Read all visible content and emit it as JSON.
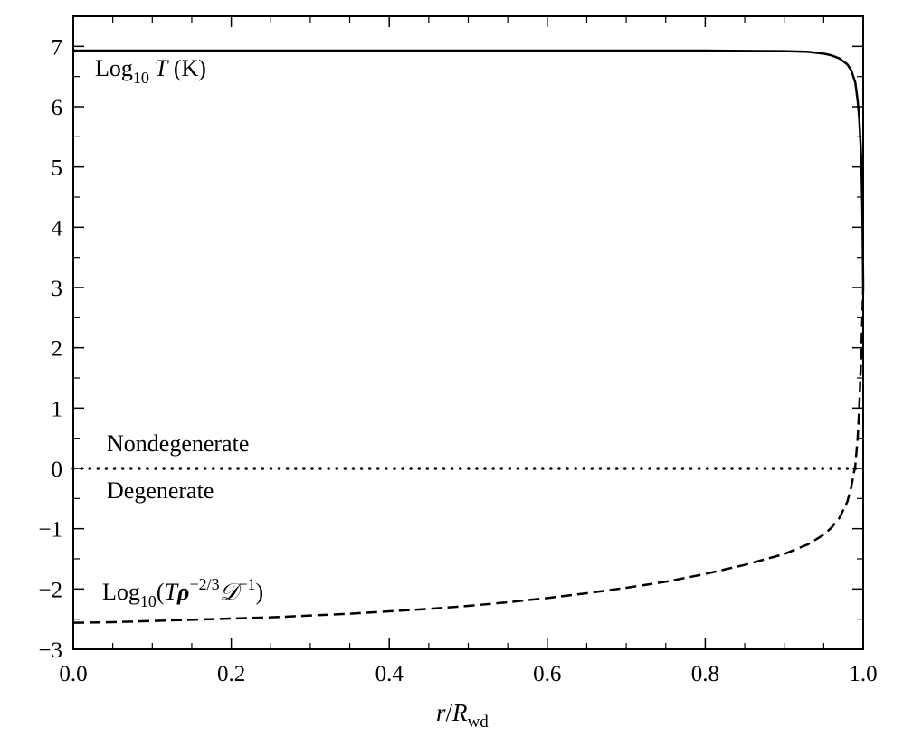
{
  "chart_data": {
    "type": "line",
    "title": "",
    "xlabel": {
      "main": "r",
      "sep": "/",
      "var": "R",
      "sub": "wd"
    },
    "ylabel": "",
    "xlim": [
      0.0,
      1.0
    ],
    "ylim": [
      -3,
      7.5
    ],
    "x_ticks": [
      0.0,
      0.2,
      0.4,
      0.6,
      0.8,
      1.0
    ],
    "x_tick_labels": [
      "0.0",
      "0.2",
      "0.4",
      "0.6",
      "0.8",
      "1.0"
    ],
    "y_ticks": [
      -3,
      -2,
      -1,
      0,
      1,
      2,
      3,
      4,
      5,
      6,
      7
    ],
    "y_tick_labels": [
      "−3",
      "−2",
      "−1",
      "0",
      "1",
      "2",
      "3",
      "4",
      "5",
      "6",
      "7"
    ],
    "grid": false,
    "legend": "none",
    "series": [
      {
        "label": {
          "pre": "Log",
          "sub": "10",
          "var": "T",
          "post": " (K)"
        },
        "style": "solid",
        "x": [
          0.0,
          0.1,
          0.2,
          0.3,
          0.4,
          0.5,
          0.6,
          0.7,
          0.8,
          0.85,
          0.9,
          0.93,
          0.95,
          0.96,
          0.97,
          0.98,
          0.985,
          0.99,
          0.993,
          0.995,
          0.997,
          0.998,
          0.999,
          1.0
        ],
        "values": [
          6.93,
          6.93,
          6.93,
          6.93,
          6.93,
          6.93,
          6.93,
          6.93,
          6.93,
          6.925,
          6.92,
          6.91,
          6.88,
          6.85,
          6.8,
          6.7,
          6.6,
          6.4,
          6.1,
          5.8,
          5.3,
          4.9,
          4.3,
          3.0
        ]
      },
      {
        "label": {
          "pre": "Log",
          "sub": "10",
          "open": "(",
          "var1": "T",
          "var2": "ρ",
          "sup1": "−2/3",
          "var3": "𝒟",
          "sup2": "−1",
          "close": ")"
        },
        "style": "dashed",
        "x": [
          0.0,
          0.05,
          0.1,
          0.15,
          0.2,
          0.25,
          0.3,
          0.35,
          0.4,
          0.45,
          0.5,
          0.55,
          0.6,
          0.65,
          0.7,
          0.75,
          0.8,
          0.85,
          0.9,
          0.93,
          0.95,
          0.96,
          0.97,
          0.98,
          0.985,
          0.99,
          0.993,
          0.995,
          0.997,
          0.998,
          0.999,
          1.0
        ],
        "values": [
          -2.56,
          -2.55,
          -2.53,
          -2.51,
          -2.49,
          -2.47,
          -2.44,
          -2.41,
          -2.37,
          -2.33,
          -2.28,
          -2.22,
          -2.15,
          -2.07,
          -1.98,
          -1.88,
          -1.75,
          -1.6,
          -1.42,
          -1.26,
          -1.1,
          -0.98,
          -0.82,
          -0.55,
          -0.3,
          0.05,
          0.5,
          1.0,
          1.7,
          2.1,
          2.5,
          3.0
        ]
      },
      {
        "label": "",
        "style": "dotted",
        "x": [
          0.0,
          1.0
        ],
        "values": [
          0,
          0
        ]
      }
    ],
    "annotations": [
      {
        "id": "nondegenerate",
        "text": "Nondegenerate"
      },
      {
        "id": "degenerate",
        "text": "Degenerate"
      }
    ]
  }
}
